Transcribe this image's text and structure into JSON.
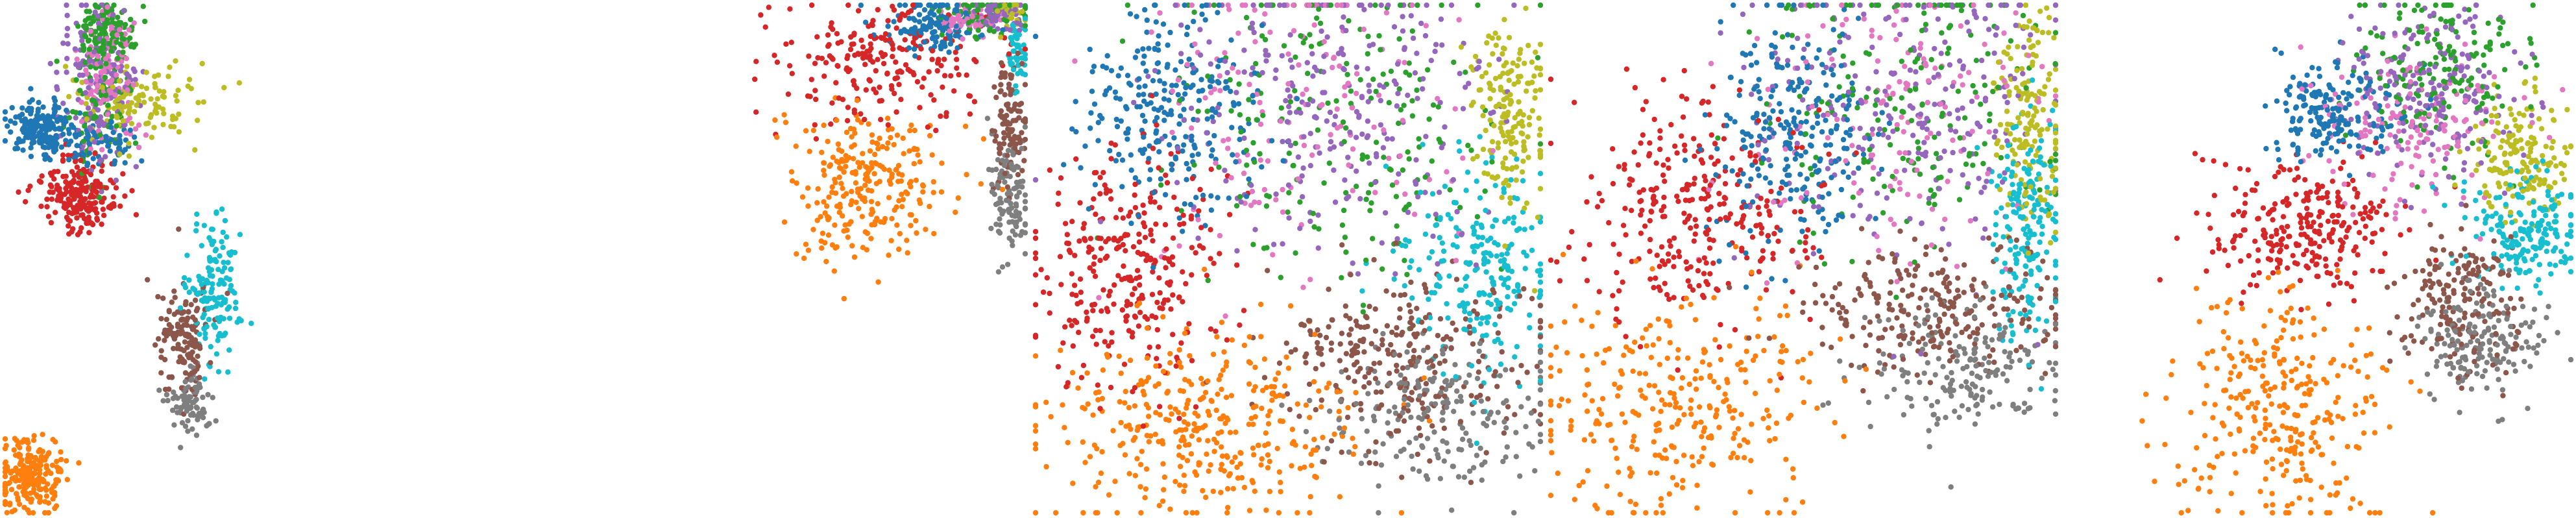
{
  "figure": {
    "panels": 5
  },
  "chart_data": [
    {
      "type": "scatter",
      "title": "",
      "xlabel": "",
      "ylabel": "",
      "axes": "hidden",
      "grid": false,
      "legend": "none",
      "xlim": [
        -10,
        10
      ],
      "ylim": [
        -10,
        10
      ],
      "series": [
        {
          "color": "#1f77b4",
          "clusters": [
            {
              "cx": -8.6,
              "cy": 5.2,
              "sx": 0.7,
              "sy": 0.5,
              "n": 180
            },
            {
              "cx": -6.4,
              "cy": 4.6,
              "sx": 0.9,
              "sy": 0.5,
              "n": 80
            }
          ]
        },
        {
          "color": "#ff7f0e",
          "clusters": [
            {
              "cx": -9.0,
              "cy": -8.5,
              "sx": 0.6,
              "sy": 0.7,
              "n": 230
            }
          ]
        },
        {
          "color": "#2ca02c",
          "clusters": [
            {
              "cx": -6.0,
              "cy": 8.9,
              "sx": 0.6,
              "sy": 0.6,
              "n": 140
            },
            {
              "cx": -6.3,
              "cy": 6.0,
              "sx": 0.6,
              "sy": 1.4,
              "n": 90
            }
          ]
        },
        {
          "color": "#d62728",
          "clusters": [
            {
              "cx": -7.1,
              "cy": 2.6,
              "sx": 0.8,
              "sy": 0.7,
              "n": 210
            }
          ]
        },
        {
          "color": "#9467bd",
          "clusters": [
            {
              "cx": -6.3,
              "cy": 6.9,
              "sx": 0.7,
              "sy": 1.6,
              "n": 150
            }
          ]
        },
        {
          "color": "#8c564b",
          "clusters": [
            {
              "cx": -2.9,
              "cy": -3.3,
              "sx": 0.5,
              "sy": 1.2,
              "n": 140
            }
          ]
        },
        {
          "color": "#e377c2",
          "clusters": [
            {
              "cx": -6.0,
              "cy": 7.3,
              "sx": 0.6,
              "sy": 1.3,
              "n": 120
            }
          ]
        },
        {
          "color": "#7f7f7f",
          "clusters": [
            {
              "cx": -2.7,
              "cy": -5.6,
              "sx": 0.4,
              "sy": 0.6,
              "n": 90
            }
          ]
        },
        {
          "color": "#bcbd22",
          "clusters": [
            {
              "cx": -4.8,
              "cy": 6.0,
              "sx": 1.3,
              "sy": 0.8,
              "n": 120
            }
          ]
        },
        {
          "color": "#17becf",
          "clusters": [
            {
              "cx": -1.7,
              "cy": -1.2,
              "sx": 0.5,
              "sy": 1.5,
              "n": 150
            }
          ]
        }
      ]
    },
    {
      "type": "scatter",
      "title": "",
      "xlabel": "",
      "ylabel": "",
      "axes": "hidden",
      "grid": false,
      "legend": "none",
      "xlim": [
        -10,
        10
      ],
      "ylim": [
        -10,
        10
      ],
      "series": [
        {
          "color": "#1f77b4",
          "clusters": [
            {
              "cx": 6.6,
              "cy": 9.3,
              "sx": 1.1,
              "sy": 0.5,
              "n": 140
            }
          ]
        },
        {
          "color": "#ff7f0e",
          "clusters": [
            {
              "cx": 3.8,
              "cy": 2.8,
              "sx": 1.6,
              "sy": 1.7,
              "n": 260
            }
          ]
        },
        {
          "color": "#2ca02c",
          "clusters": [
            {
              "cx": 8.3,
              "cy": 9.7,
              "sx": 0.9,
              "sy": 0.4,
              "n": 80
            }
          ]
        },
        {
          "color": "#d62728",
          "clusters": [
            {
              "cx": 4.2,
              "cy": 7.6,
              "sx": 2.0,
              "sy": 1.2,
              "n": 220
            }
          ]
        },
        {
          "color": "#9467bd",
          "clusters": [
            {
              "cx": 8.9,
              "cy": 9.7,
              "sx": 0.6,
              "sy": 0.3,
              "n": 70
            }
          ]
        },
        {
          "color": "#8c564b",
          "clusters": [
            {
              "cx": 9.4,
              "cy": 5.1,
              "sx": 0.4,
              "sy": 1.2,
              "n": 110
            }
          ]
        },
        {
          "color": "#e377c2",
          "clusters": [
            {
              "cx": 7.8,
              "cy": 9.4,
              "sx": 0.6,
              "sy": 0.3,
              "n": 50
            }
          ]
        },
        {
          "color": "#7f7f7f",
          "clusters": [
            {
              "cx": 9.4,
              "cy": 2.7,
              "sx": 0.4,
              "sy": 1.2,
              "n": 110
            }
          ]
        },
        {
          "color": "#bcbd22",
          "clusters": [
            {
              "cx": 9.5,
              "cy": 9.8,
              "sx": 0.3,
              "sy": 0.3,
              "n": 40
            }
          ]
        },
        {
          "color": "#17becf",
          "clusters": [
            {
              "cx": 9.7,
              "cy": 8.2,
              "sx": 0.2,
              "sy": 0.7,
              "n": 50
            }
          ]
        }
      ]
    },
    {
      "type": "scatter",
      "title": "",
      "xlabel": "",
      "ylabel": "",
      "axes": "hidden",
      "grid": false,
      "legend": "none",
      "xlim": [
        -10,
        10
      ],
      "ylim": [
        -10,
        10
      ],
      "series": [
        {
          "color": "#1f77b4",
          "clusters": [
            {
              "cx": -4.6,
              "cy": 5.8,
              "sx": 1.7,
              "sy": 2.2,
              "n": 260
            }
          ]
        },
        {
          "color": "#ff7f0e",
          "clusters": [
            {
              "cx": -3.6,
              "cy": -6.6,
              "sx": 3.2,
              "sy": 1.9,
              "n": 360
            }
          ]
        },
        {
          "color": "#2ca02c",
          "clusters": [
            {
              "cx": 1.9,
              "cy": 5.4,
              "sx": 3.4,
              "sy": 3.3,
              "n": 210
            }
          ]
        },
        {
          "color": "#d62728",
          "clusters": [
            {
              "cx": -6.2,
              "cy": -0.4,
              "sx": 1.9,
              "sy": 2.4,
              "n": 300
            }
          ]
        },
        {
          "color": "#9467bd",
          "clusters": [
            {
              "cx": 1.8,
              "cy": 6.2,
              "sx": 3.5,
              "sy": 3.0,
              "n": 270
            }
          ]
        },
        {
          "color": "#8c564b",
          "clusters": [
            {
              "cx": 4.4,
              "cy": -4.0,
              "sx": 2.7,
              "sy": 1.7,
              "n": 280
            }
          ]
        },
        {
          "color": "#e377c2",
          "clusters": [
            {
              "cx": 0.6,
              "cy": 5.6,
              "sx": 3.3,
              "sy": 3.2,
              "n": 150
            }
          ]
        },
        {
          "color": "#7f7f7f",
          "clusters": [
            {
              "cx": 6.0,
              "cy": -6.2,
              "sx": 2.2,
              "sy": 1.5,
              "n": 200
            }
          ]
        },
        {
          "color": "#bcbd22",
          "clusters": [
            {
              "cx": 8.8,
              "cy": 5.8,
              "sx": 0.8,
              "sy": 2.0,
              "n": 170
            }
          ]
        },
        {
          "color": "#17becf",
          "clusters": [
            {
              "cx": 7.6,
              "cy": -0.6,
              "sx": 1.6,
              "sy": 2.2,
              "n": 230
            }
          ]
        }
      ]
    },
    {
      "type": "scatter",
      "title": "",
      "xlabel": "",
      "ylabel": "",
      "axes": "hidden",
      "grid": false,
      "legend": "none",
      "xlim": [
        -10,
        10
      ],
      "ylim": [
        -10,
        10
      ],
      "series": [
        {
          "color": "#1f77b4",
          "clusters": [
            {
              "cx": -0.3,
              "cy": 5.3,
              "sx": 1.5,
              "sy": 2.4,
              "n": 250
            }
          ]
        },
        {
          "color": "#ff7f0e",
          "clusters": [
            {
              "cx": -4.9,
              "cy": -5.8,
              "sx": 2.7,
              "sy": 2.3,
              "n": 300
            }
          ]
        },
        {
          "color": "#2ca02c",
          "clusters": [
            {
              "cx": 4.4,
              "cy": 6.3,
              "sx": 3.0,
              "sy": 2.8,
              "n": 190
            }
          ]
        },
        {
          "color": "#d62728",
          "clusters": [
            {
              "cx": -4.6,
              "cy": 1.7,
              "sx": 2.4,
              "sy": 2.4,
              "n": 300
            }
          ]
        },
        {
          "color": "#9467bd",
          "clusters": [
            {
              "cx": 4.4,
              "cy": 6.0,
              "sx": 3.2,
              "sy": 3.0,
              "n": 250
            }
          ]
        },
        {
          "color": "#8c564b",
          "clusters": [
            {
              "cx": 5.2,
              "cy": -1.8,
              "sx": 2.7,
              "sy": 1.2,
              "n": 250
            }
          ]
        },
        {
          "color": "#e377c2",
          "clusters": [
            {
              "cx": 3.8,
              "cy": 5.9,
              "sx": 3.0,
              "sy": 2.8,
              "n": 150
            }
          ]
        },
        {
          "color": "#7f7f7f",
          "clusters": [
            {
              "cx": 6.5,
              "cy": -4.3,
              "sx": 2.0,
              "sy": 1.2,
              "n": 180
            }
          ]
        },
        {
          "color": "#bcbd22",
          "clusters": [
            {
              "cx": 9.0,
              "cy": 5.8,
              "sx": 0.7,
              "sy": 2.3,
              "n": 160
            }
          ]
        },
        {
          "color": "#17becf",
          "clusters": [
            {
              "cx": 8.9,
              "cy": 1.3,
              "sx": 0.7,
              "sy": 2.3,
              "n": 190
            }
          ]
        }
      ]
    },
    {
      "type": "scatter",
      "title": "",
      "xlabel": "",
      "ylabel": "",
      "axes": "hidden",
      "grid": false,
      "legend": "none",
      "xlim": [
        -10,
        10
      ],
      "ylim": [
        -10,
        10
      ],
      "series": [
        {
          "color": "#1f77b4",
          "clusters": [
            {
              "cx": 0.6,
              "cy": 5.7,
              "sx": 1.3,
              "sy": 1.0,
              "n": 190
            }
          ]
        },
        {
          "color": "#ff7f0e",
          "clusters": [
            {
              "cx": -1.4,
              "cy": -5.6,
              "sx": 2.1,
              "sy": 2.4,
              "n": 300
            }
          ]
        },
        {
          "color": "#2ca02c",
          "clusters": [
            {
              "cx": 4.8,
              "cy": 7.4,
              "sx": 1.6,
              "sy": 1.7,
              "n": 180
            }
          ]
        },
        {
          "color": "#d62728",
          "clusters": [
            {
              "cx": -0.6,
              "cy": 1.3,
              "sx": 1.9,
              "sy": 1.4,
              "n": 260
            }
          ]
        },
        {
          "color": "#9467bd",
          "clusters": [
            {
              "cx": 4.3,
              "cy": 6.4,
              "sx": 1.8,
              "sy": 1.8,
              "n": 200
            }
          ]
        },
        {
          "color": "#8c564b",
          "clusters": [
            {
              "cx": 5.7,
              "cy": -1.5,
              "sx": 1.1,
              "sy": 1.5,
              "n": 180
            }
          ]
        },
        {
          "color": "#e377c2",
          "clusters": [
            {
              "cx": 3.6,
              "cy": 5.4,
              "sx": 1.8,
              "sy": 1.7,
              "n": 150
            }
          ]
        },
        {
          "color": "#7f7f7f",
          "clusters": [
            {
              "cx": 6.6,
              "cy": -3.2,
              "sx": 1.2,
              "sy": 1.2,
              "n": 170
            }
          ]
        },
        {
          "color": "#bcbd22",
          "clusters": [
            {
              "cx": 8.0,
              "cy": 4.0,
              "sx": 0.9,
              "sy": 1.2,
              "n": 160
            }
          ]
        },
        {
          "color": "#17becf",
          "clusters": [
            {
              "cx": 8.3,
              "cy": 1.0,
              "sx": 1.2,
              "sy": 1.1,
              "n": 190
            }
          ]
        }
      ]
    }
  ]
}
